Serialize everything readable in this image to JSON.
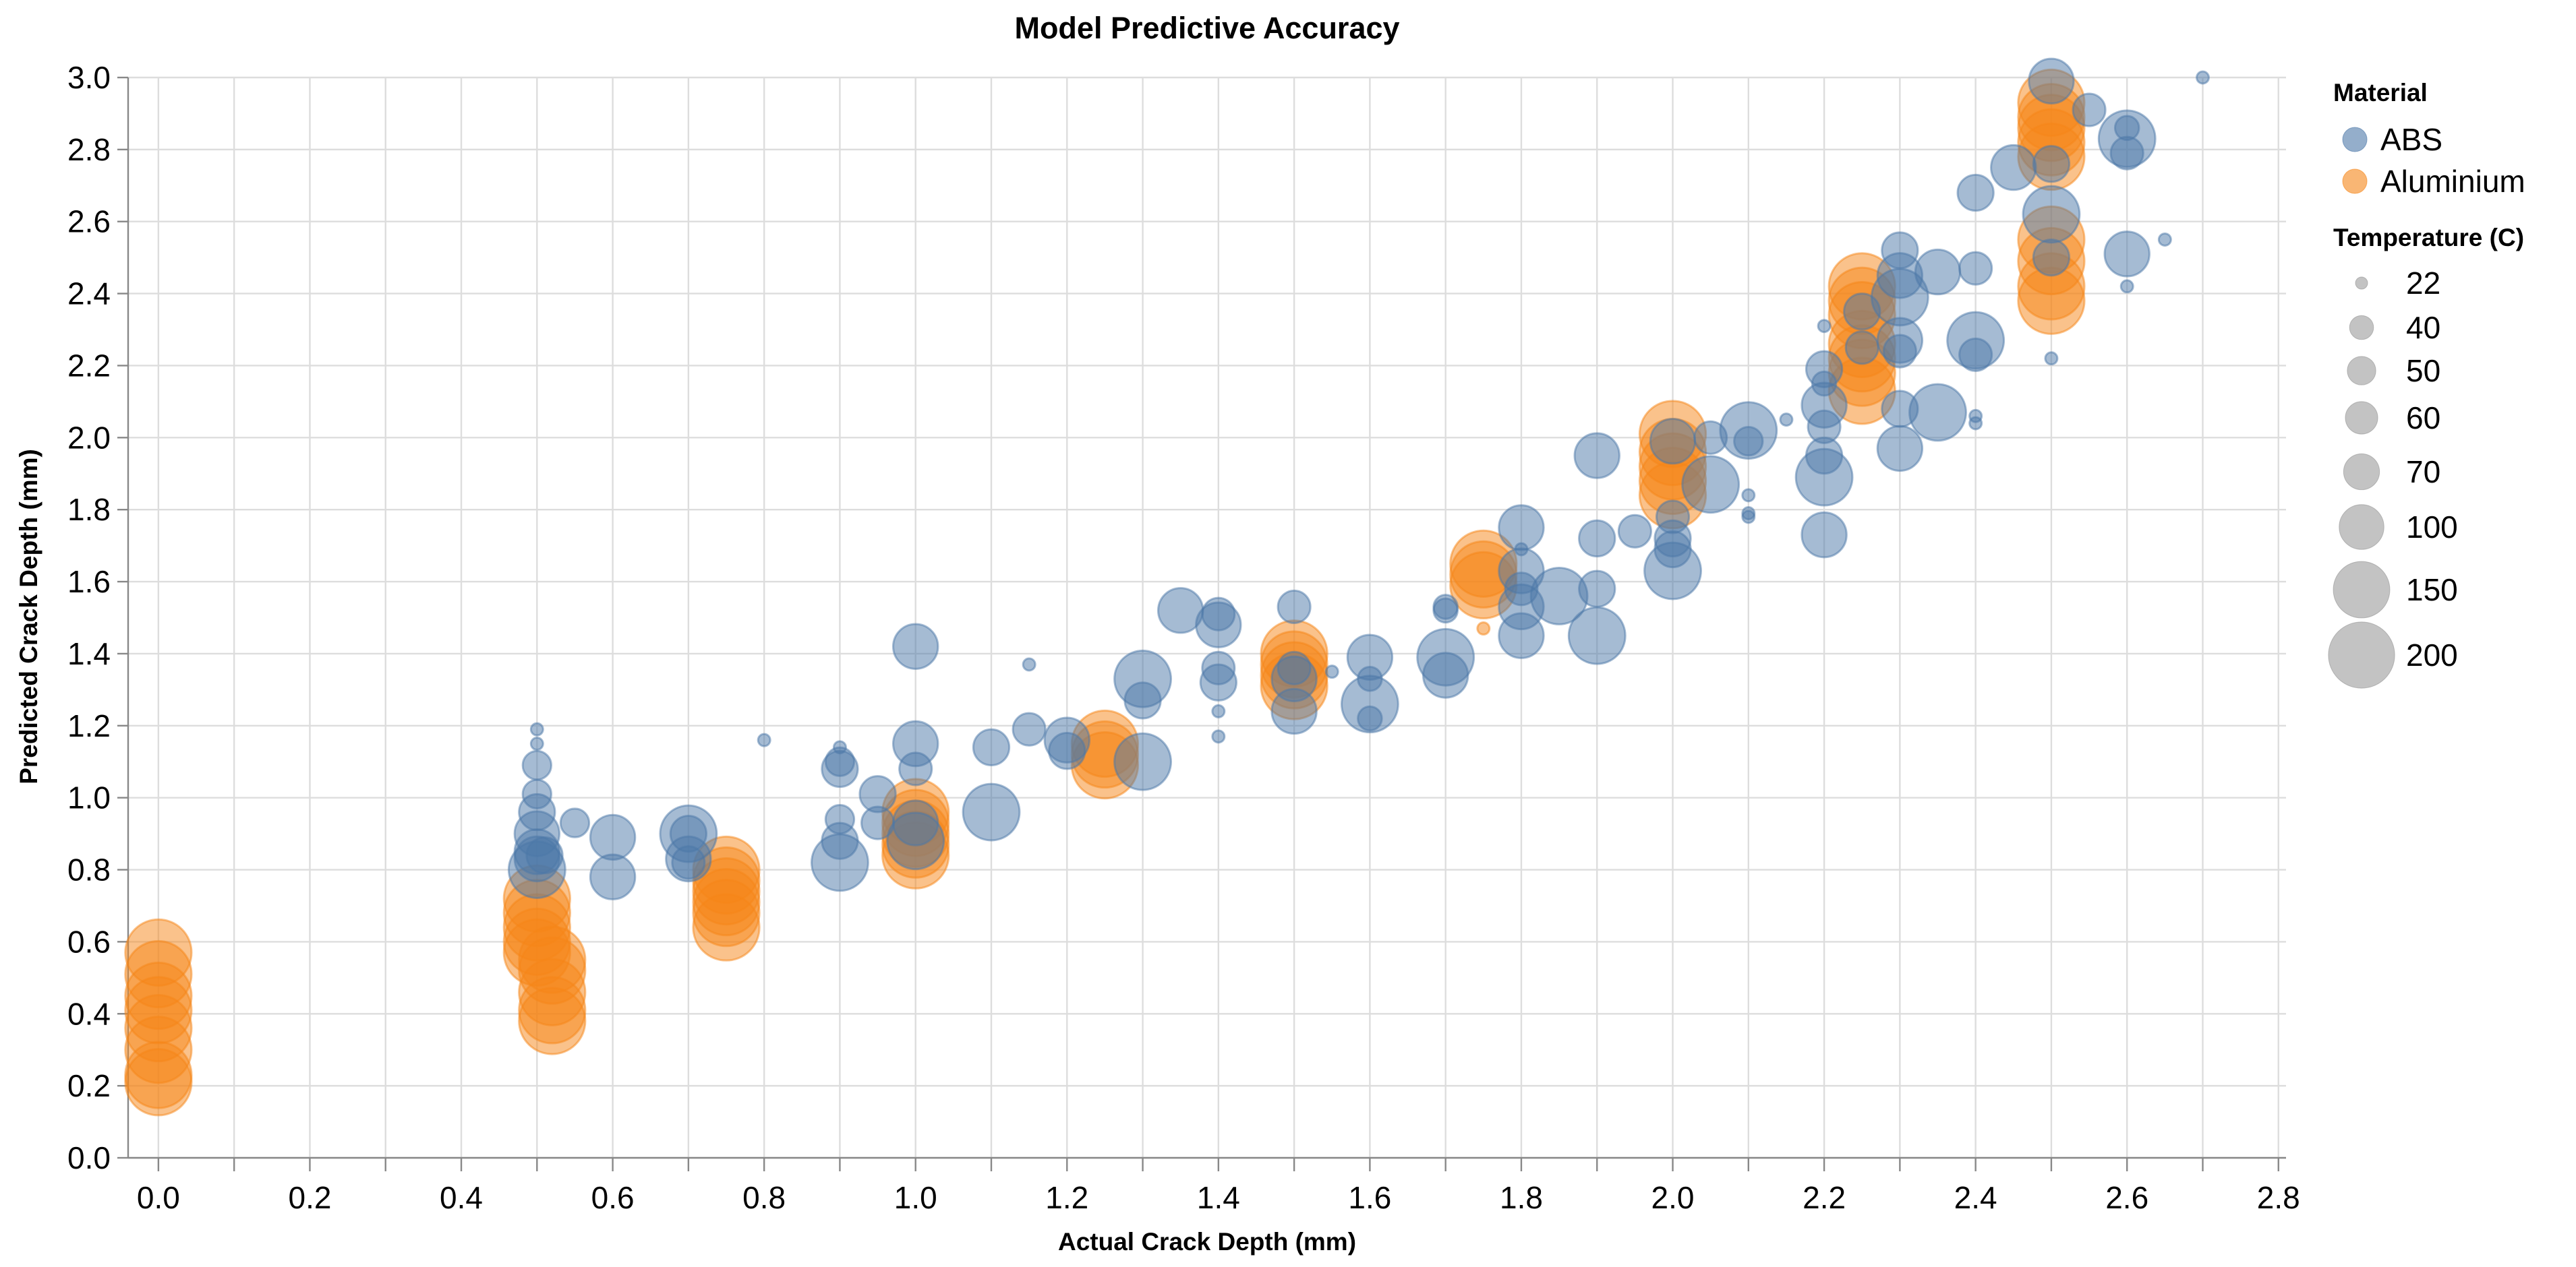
{
  "chart_data": {
    "type": "scatter",
    "title": "Model Predictive Accuracy",
    "xlabel": "Actual Crack Depth (mm)",
    "ylabel": "Predicted Crack Depth (mm)",
    "xlim": [
      -0.04,
      2.81
    ],
    "ylim": [
      0,
      3.0
    ],
    "x_ticks": [
      "0.0",
      "0.2",
      "0.4",
      "0.6",
      "0.8",
      "1.0",
      "1.2",
      "1.4",
      "1.6",
      "1.8",
      "2.0",
      "2.2",
      "2.4",
      "2.6",
      "2.8"
    ],
    "y_ticks": [
      "0.0",
      "0.2",
      "0.4",
      "0.6",
      "0.8",
      "1.0",
      "1.2",
      "1.4",
      "1.6",
      "1.8",
      "2.0",
      "2.2",
      "2.4",
      "2.6",
      "2.8",
      "3.0"
    ],
    "grid": true,
    "color_legend": {
      "title": "Material",
      "placement": "right",
      "items": [
        {
          "label": "ABS",
          "color": "#4c78a8"
        },
        {
          "label": "Aluminium",
          "color": "#f58518"
        }
      ]
    },
    "size_legend": {
      "title": "Temperature (C)",
      "items": [
        {
          "label": "22",
          "value": 22
        },
        {
          "label": "40",
          "value": 40
        },
        {
          "label": "50",
          "value": 50
        },
        {
          "label": "60",
          "value": 60
        },
        {
          "label": "70",
          "value": 70
        },
        {
          "label": "100",
          "value": 100
        },
        {
          "label": "150",
          "value": 150
        },
        {
          "label": "200",
          "value": 200
        }
      ]
    },
    "series": [
      {
        "name": "ABS",
        "color": "#4c78a8",
        "points": [
          {
            "x": 0.5,
            "y": 1.19,
            "t": 22
          },
          {
            "x": 0.5,
            "y": 1.15,
            "t": 22
          },
          {
            "x": 0.5,
            "y": 1.09,
            "t": 50
          },
          {
            "x": 0.5,
            "y": 1.01,
            "t": 50
          },
          {
            "x": 0.5,
            "y": 0.96,
            "t": 70
          },
          {
            "x": 0.5,
            "y": 0.9,
            "t": 100
          },
          {
            "x": 0.5,
            "y": 0.85,
            "t": 100
          },
          {
            "x": 0.5,
            "y": 0.83,
            "t": 100
          },
          {
            "x": 0.5,
            "y": 0.8,
            "t": 150
          },
          {
            "x": 0.51,
            "y": 0.84,
            "t": 70
          },
          {
            "x": 0.55,
            "y": 0.93,
            "t": 50
          },
          {
            "x": 0.6,
            "y": 0.89,
            "t": 100
          },
          {
            "x": 0.6,
            "y": 0.78,
            "t": 100
          },
          {
            "x": 0.7,
            "y": 0.9,
            "t": 150
          },
          {
            "x": 0.7,
            "y": 0.9,
            "t": 70
          },
          {
            "x": 0.7,
            "y": 0.83,
            "t": 100
          },
          {
            "x": 0.7,
            "y": 0.82,
            "t": 60
          },
          {
            "x": 0.8,
            "y": 1.16,
            "t": 22
          },
          {
            "x": 0.9,
            "y": 1.14,
            "t": 22
          },
          {
            "x": 0.9,
            "y": 1.1,
            "t": 50
          },
          {
            "x": 0.9,
            "y": 1.08,
            "t": 70
          },
          {
            "x": 0.9,
            "y": 0.94,
            "t": 50
          },
          {
            "x": 0.9,
            "y": 0.88,
            "t": 70
          },
          {
            "x": 0.9,
            "y": 0.82,
            "t": 150
          },
          {
            "x": 0.95,
            "y": 1.01,
            "t": 70
          },
          {
            "x": 0.95,
            "y": 0.93,
            "t": 60
          },
          {
            "x": 1.0,
            "y": 1.42,
            "t": 100
          },
          {
            "x": 1.0,
            "y": 1.15,
            "t": 100
          },
          {
            "x": 1.0,
            "y": 1.08,
            "t": 60
          },
          {
            "x": 1.0,
            "y": 0.93,
            "t": 100
          },
          {
            "x": 1.0,
            "y": 0.88,
            "t": 150
          },
          {
            "x": 1.1,
            "y": 1.14,
            "t": 70
          },
          {
            "x": 1.1,
            "y": 0.96,
            "t": 150
          },
          {
            "x": 1.15,
            "y": 1.37,
            "t": 22
          },
          {
            "x": 1.15,
            "y": 1.19,
            "t": 60
          },
          {
            "x": 1.2,
            "y": 1.16,
            "t": 100
          },
          {
            "x": 1.2,
            "y": 1.13,
            "t": 70
          },
          {
            "x": 1.3,
            "y": 1.33,
            "t": 150
          },
          {
            "x": 1.3,
            "y": 1.27,
            "t": 70
          },
          {
            "x": 1.3,
            "y": 1.1,
            "t": 150
          },
          {
            "x": 1.35,
            "y": 1.52,
            "t": 100
          },
          {
            "x": 1.4,
            "y": 1.51,
            "t": 60
          },
          {
            "x": 1.4,
            "y": 1.48,
            "t": 100
          },
          {
            "x": 1.4,
            "y": 1.36,
            "t": 60
          },
          {
            "x": 1.4,
            "y": 1.32,
            "t": 70
          },
          {
            "x": 1.4,
            "y": 1.24,
            "t": 22
          },
          {
            "x": 1.4,
            "y": 1.17,
            "t": 22
          },
          {
            "x": 1.5,
            "y": 1.53,
            "t": 60
          },
          {
            "x": 1.5,
            "y": 1.36,
            "t": 60
          },
          {
            "x": 1.5,
            "y": 1.33,
            "t": 100
          },
          {
            "x": 1.5,
            "y": 1.24,
            "t": 100
          },
          {
            "x": 1.55,
            "y": 1.35,
            "t": 22
          },
          {
            "x": 1.6,
            "y": 1.39,
            "t": 100
          },
          {
            "x": 1.6,
            "y": 1.33,
            "t": 40
          },
          {
            "x": 1.6,
            "y": 1.26,
            "t": 150
          },
          {
            "x": 1.6,
            "y": 1.22,
            "t": 40
          },
          {
            "x": 1.7,
            "y": 1.53,
            "t": 40
          },
          {
            "x": 1.7,
            "y": 1.52,
            "t": 40
          },
          {
            "x": 1.7,
            "y": 1.39,
            "t": 150
          },
          {
            "x": 1.7,
            "y": 1.34,
            "t": 100
          },
          {
            "x": 1.8,
            "y": 1.75,
            "t": 100
          },
          {
            "x": 1.8,
            "y": 1.69,
            "t": 22
          },
          {
            "x": 1.8,
            "y": 1.63,
            "t": 100
          },
          {
            "x": 1.8,
            "y": 1.58,
            "t": 60
          },
          {
            "x": 1.8,
            "y": 1.53,
            "t": 100
          },
          {
            "x": 1.8,
            "y": 1.45,
            "t": 100
          },
          {
            "x": 1.85,
            "y": 1.56,
            "t": 150
          },
          {
            "x": 1.9,
            "y": 1.95,
            "t": 100
          },
          {
            "x": 1.9,
            "y": 1.72,
            "t": 70
          },
          {
            "x": 1.9,
            "y": 1.58,
            "t": 70
          },
          {
            "x": 1.9,
            "y": 1.45,
            "t": 150
          },
          {
            "x": 1.95,
            "y": 1.74,
            "t": 60
          },
          {
            "x": 2.0,
            "y": 1.99,
            "t": 100
          },
          {
            "x": 2.0,
            "y": 1.78,
            "t": 60
          },
          {
            "x": 2.0,
            "y": 1.72,
            "t": 70
          },
          {
            "x": 2.0,
            "y": 1.69,
            "t": 70
          },
          {
            "x": 2.0,
            "y": 1.63,
            "t": 150
          },
          {
            "x": 2.05,
            "y": 2.0,
            "t": 60
          },
          {
            "x": 2.05,
            "y": 1.87,
            "t": 150
          },
          {
            "x": 2.1,
            "y": 2.02,
            "t": 150
          },
          {
            "x": 2.1,
            "y": 1.99,
            "t": 50
          },
          {
            "x": 2.1,
            "y": 1.84,
            "t": 22
          },
          {
            "x": 2.1,
            "y": 1.79,
            "t": 22
          },
          {
            "x": 2.1,
            "y": 1.78,
            "t": 22
          },
          {
            "x": 2.15,
            "y": 2.05,
            "t": 22
          },
          {
            "x": 2.2,
            "y": 2.19,
            "t": 70
          },
          {
            "x": 2.2,
            "y": 2.15,
            "t": 40
          },
          {
            "x": 2.2,
            "y": 2.09,
            "t": 100
          },
          {
            "x": 2.2,
            "y": 2.03,
            "t": 60
          },
          {
            "x": 2.2,
            "y": 1.95,
            "t": 70
          },
          {
            "x": 2.2,
            "y": 1.89,
            "t": 150
          },
          {
            "x": 2.2,
            "y": 1.73,
            "t": 100
          },
          {
            "x": 2.2,
            "y": 2.31,
            "t": 22
          },
          {
            "x": 2.25,
            "y": 2.35,
            "t": 70
          },
          {
            "x": 2.25,
            "y": 2.25,
            "t": 60
          },
          {
            "x": 2.3,
            "y": 2.52,
            "t": 70
          },
          {
            "x": 2.3,
            "y": 2.45,
            "t": 100
          },
          {
            "x": 2.3,
            "y": 2.39,
            "t": 150
          },
          {
            "x": 2.3,
            "y": 2.27,
            "t": 100
          },
          {
            "x": 2.3,
            "y": 2.24,
            "t": 60
          },
          {
            "x": 2.3,
            "y": 2.08,
            "t": 70
          },
          {
            "x": 2.3,
            "y": 1.97,
            "t": 100
          },
          {
            "x": 2.35,
            "y": 2.46,
            "t": 100
          },
          {
            "x": 2.35,
            "y": 2.07,
            "t": 150
          },
          {
            "x": 2.4,
            "y": 2.68,
            "t": 70
          },
          {
            "x": 2.4,
            "y": 2.47,
            "t": 60
          },
          {
            "x": 2.4,
            "y": 2.27,
            "t": 150
          },
          {
            "x": 2.4,
            "y": 2.23,
            "t": 60
          },
          {
            "x": 2.4,
            "y": 2.06,
            "t": 22
          },
          {
            "x": 2.4,
            "y": 2.04,
            "t": 22
          },
          {
            "x": 2.45,
            "y": 2.75,
            "t": 100
          },
          {
            "x": 2.5,
            "y": 2.99,
            "t": 100
          },
          {
            "x": 2.5,
            "y": 2.76,
            "t": 70
          },
          {
            "x": 2.5,
            "y": 2.62,
            "t": 150
          },
          {
            "x": 2.5,
            "y": 2.5,
            "t": 70
          },
          {
            "x": 2.5,
            "y": 2.22,
            "t": 22
          },
          {
            "x": 2.55,
            "y": 2.91,
            "t": 60
          },
          {
            "x": 2.6,
            "y": 2.86,
            "t": 40
          },
          {
            "x": 2.6,
            "y": 2.83,
            "t": 150
          },
          {
            "x": 2.6,
            "y": 2.79,
            "t": 60
          },
          {
            "x": 2.6,
            "y": 2.51,
            "t": 100
          },
          {
            "x": 2.6,
            "y": 2.42,
            "t": 22
          },
          {
            "x": 2.65,
            "y": 2.55,
            "t": 22
          },
          {
            "x": 2.7,
            "y": 3.0,
            "t": 22
          }
        ]
      },
      {
        "name": "Aluminium",
        "color": "#f58518",
        "points": [
          {
            "x": 0.0,
            "y": 0.57,
            "t": 200
          },
          {
            "x": 0.0,
            "y": 0.51,
            "t": 200
          },
          {
            "x": 0.0,
            "y": 0.45,
            "t": 200
          },
          {
            "x": 0.0,
            "y": 0.41,
            "t": 200
          },
          {
            "x": 0.0,
            "y": 0.36,
            "t": 200
          },
          {
            "x": 0.0,
            "y": 0.3,
            "t": 200
          },
          {
            "x": 0.0,
            "y": 0.23,
            "t": 200
          },
          {
            "x": 0.0,
            "y": 0.21,
            "t": 200
          },
          {
            "x": 0.5,
            "y": 0.72,
            "t": 200
          },
          {
            "x": 0.5,
            "y": 0.68,
            "t": 200
          },
          {
            "x": 0.5,
            "y": 0.64,
            "t": 200
          },
          {
            "x": 0.5,
            "y": 0.6,
            "t": 200
          },
          {
            "x": 0.5,
            "y": 0.57,
            "t": 200
          },
          {
            "x": 0.52,
            "y": 0.55,
            "t": 200
          },
          {
            "x": 0.52,
            "y": 0.52,
            "t": 200
          },
          {
            "x": 0.52,
            "y": 0.46,
            "t": 200
          },
          {
            "x": 0.52,
            "y": 0.41,
            "t": 200
          },
          {
            "x": 0.52,
            "y": 0.38,
            "t": 200
          },
          {
            "x": 0.75,
            "y": 0.8,
            "t": 200
          },
          {
            "x": 0.75,
            "y": 0.77,
            "t": 200
          },
          {
            "x": 0.75,
            "y": 0.74,
            "t": 200
          },
          {
            "x": 0.75,
            "y": 0.71,
            "t": 200
          },
          {
            "x": 0.75,
            "y": 0.68,
            "t": 200
          },
          {
            "x": 0.75,
            "y": 0.64,
            "t": 200
          },
          {
            "x": 1.0,
            "y": 0.96,
            "t": 200
          },
          {
            "x": 1.0,
            "y": 0.93,
            "t": 200
          },
          {
            "x": 1.0,
            "y": 0.9,
            "t": 200
          },
          {
            "x": 1.0,
            "y": 0.87,
            "t": 200
          },
          {
            "x": 1.0,
            "y": 0.84,
            "t": 200
          },
          {
            "x": 1.25,
            "y": 1.15,
            "t": 200
          },
          {
            "x": 1.25,
            "y": 1.12,
            "t": 200
          },
          {
            "x": 1.25,
            "y": 1.09,
            "t": 200
          },
          {
            "x": 1.5,
            "y": 1.4,
            "t": 200
          },
          {
            "x": 1.5,
            "y": 1.37,
            "t": 200
          },
          {
            "x": 1.5,
            "y": 1.34,
            "t": 200
          },
          {
            "x": 1.5,
            "y": 1.31,
            "t": 200
          },
          {
            "x": 1.75,
            "y": 1.65,
            "t": 200
          },
          {
            "x": 1.75,
            "y": 1.62,
            "t": 200
          },
          {
            "x": 1.75,
            "y": 1.59,
            "t": 200
          },
          {
            "x": 1.75,
            "y": 1.47,
            "t": 22
          },
          {
            "x": 2.0,
            "y": 2.01,
            "t": 200
          },
          {
            "x": 2.0,
            "y": 1.96,
            "t": 200
          },
          {
            "x": 2.0,
            "y": 1.92,
            "t": 200
          },
          {
            "x": 2.0,
            "y": 1.88,
            "t": 200
          },
          {
            "x": 2.0,
            "y": 1.84,
            "t": 200
          },
          {
            "x": 2.25,
            "y": 2.42,
            "t": 200
          },
          {
            "x": 2.25,
            "y": 2.38,
            "t": 200
          },
          {
            "x": 2.25,
            "y": 2.34,
            "t": 200
          },
          {
            "x": 2.25,
            "y": 2.26,
            "t": 200
          },
          {
            "x": 2.25,
            "y": 2.22,
            "t": 200
          },
          {
            "x": 2.25,
            "y": 2.18,
            "t": 200
          },
          {
            "x": 2.25,
            "y": 2.13,
            "t": 200
          },
          {
            "x": 2.5,
            "y": 2.93,
            "t": 200
          },
          {
            "x": 2.5,
            "y": 2.89,
            "t": 200
          },
          {
            "x": 2.5,
            "y": 2.86,
            "t": 200
          },
          {
            "x": 2.5,
            "y": 2.82,
            "t": 200
          },
          {
            "x": 2.5,
            "y": 2.78,
            "t": 200
          },
          {
            "x": 2.5,
            "y": 2.55,
            "t": 200
          },
          {
            "x": 2.5,
            "y": 2.49,
            "t": 200
          },
          {
            "x": 2.5,
            "y": 2.42,
            "t": 200
          },
          {
            "x": 2.5,
            "y": 2.38,
            "t": 200
          }
        ]
      }
    ]
  }
}
